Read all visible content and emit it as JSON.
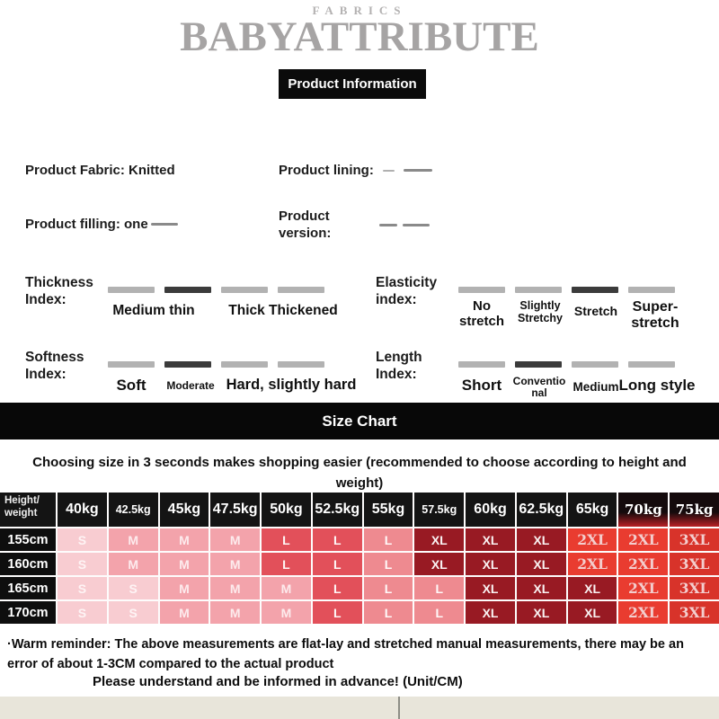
{
  "brand": {
    "fabrics": "FABRICS",
    "name": "BABYATTRIBUTE"
  },
  "product_info": {
    "title": "Product Information",
    "fabric_label": "Product Fabric: Knitted",
    "lining_label": "Product lining:",
    "filling_label": "Product filling: one",
    "version_label": "Product version:"
  },
  "indices": [
    {
      "name": "thickness",
      "label_line1": "Thickness",
      "label_line2": "Index:",
      "bars": [
        "normal",
        "selected",
        "normal",
        "normal"
      ],
      "labels": [
        "Medium thin",
        "Thick Thickened"
      ],
      "selected": "Medium thin"
    },
    {
      "name": "elasticity",
      "label_line1": "Elasticity",
      "label_line2": "index:",
      "bars": [
        "normal",
        "normal",
        "selected",
        "normal"
      ],
      "labels": [
        "No stretch",
        "Slightly Stretchy",
        "Stretch",
        "Super-stretch"
      ],
      "selected": "Stretch"
    },
    {
      "name": "softness",
      "label_line1": "Softness",
      "label_line2": "Index:",
      "bars": [
        "normal",
        "selected",
        "normal",
        "normal"
      ],
      "labels": [
        "Soft",
        "Moderate",
        "Hard, slightly hard"
      ],
      "selected": "Moderate"
    },
    {
      "name": "length",
      "label_line1": "Length",
      "label_line2": "Index:",
      "bars": [
        "normal",
        "selected",
        "normal",
        "normal"
      ],
      "labels": [
        "Short",
        "Conventional",
        "Medium",
        "Long style"
      ],
      "selected": "Conventional"
    }
  ],
  "size_chart": {
    "banner": "Size Chart",
    "subtitle": "Choosing size in 3 seconds makes shopping easier (recommended to choose according to height and weight)",
    "table": {
      "corner_line1": "Height/",
      "corner_line2": "weight",
      "weight_columns": [
        "40kg",
        "42.5kg",
        "45kg",
        "47.5kg",
        "50kg",
        "52.5kg",
        "55kg",
        "57.5kg",
        "60kg",
        "62.5kg",
        "65kg",
        "70kg",
        "75kg"
      ],
      "height_rows": [
        {
          "label": "155cm",
          "sizes": [
            "S",
            "M",
            "M",
            "M",
            "L",
            "L",
            "L",
            "XL",
            "XL",
            "XL",
            "2XL",
            "2XL",
            "3XL"
          ],
          "shades": [
            "s",
            "m",
            "m",
            "m",
            "l_red",
            "l_red",
            "l_salmon",
            "xl",
            "xl",
            "xl",
            "xxl",
            "xxl",
            "xxxl"
          ]
        },
        {
          "label": "160cm",
          "sizes": [
            "S",
            "M",
            "M",
            "M",
            "L",
            "L",
            "L",
            "XL",
            "XL",
            "XL",
            "2XL",
            "2XL",
            "3XL"
          ],
          "shades": [
            "s",
            "m",
            "m",
            "m",
            "l_red",
            "l_red",
            "l_salmon",
            "xl",
            "xl",
            "xl",
            "xxl",
            "xxl",
            "xxxl"
          ]
        },
        {
          "label": "165cm",
          "sizes": [
            "S",
            "S",
            "M",
            "M",
            "M",
            "L",
            "L",
            "L",
            "XL",
            "XL",
            "XL",
            "2XL",
            "3XL"
          ],
          "shades": [
            "s",
            "s",
            "m",
            "m",
            "m",
            "l_red",
            "l_salmon",
            "l_salmon",
            "xl",
            "xl",
            "xl",
            "xxl",
            "xxxl"
          ]
        },
        {
          "label": "170cm",
          "sizes": [
            "S",
            "S",
            "M",
            "M",
            "M",
            "L",
            "L",
            "L",
            "XL",
            "XL",
            "XL",
            "2XL",
            "3XL"
          ],
          "shades": [
            "s",
            "s",
            "m",
            "m",
            "m",
            "l_red",
            "l_salmon",
            "l_salmon",
            "xl",
            "xl",
            "xl",
            "xxl",
            "xxxl"
          ]
        }
      ],
      "palette": {
        "s": "#f8ccd1",
        "m": "#f3a3ab",
        "l_red": "#e2505a",
        "l_salmon": "#ee8a90",
        "xl": "#981a23",
        "xxl": "#e93c30",
        "xxxl": "#d8332a"
      }
    }
  },
  "footer": {
    "warm_reminder": "·Warm reminder: The above measurements are flat-lay and stretched manual measurements, there may be an error of about 1-3CM compared to the actual product",
    "understand": "Please understand and be informed in advance! (Unit/CM)"
  },
  "colors": {
    "banner_black": "#0a0a0a",
    "bar_gray": "#b2b2b2",
    "bar_selected": "#3b3b3b",
    "footer_strip": "#e8e5da"
  }
}
